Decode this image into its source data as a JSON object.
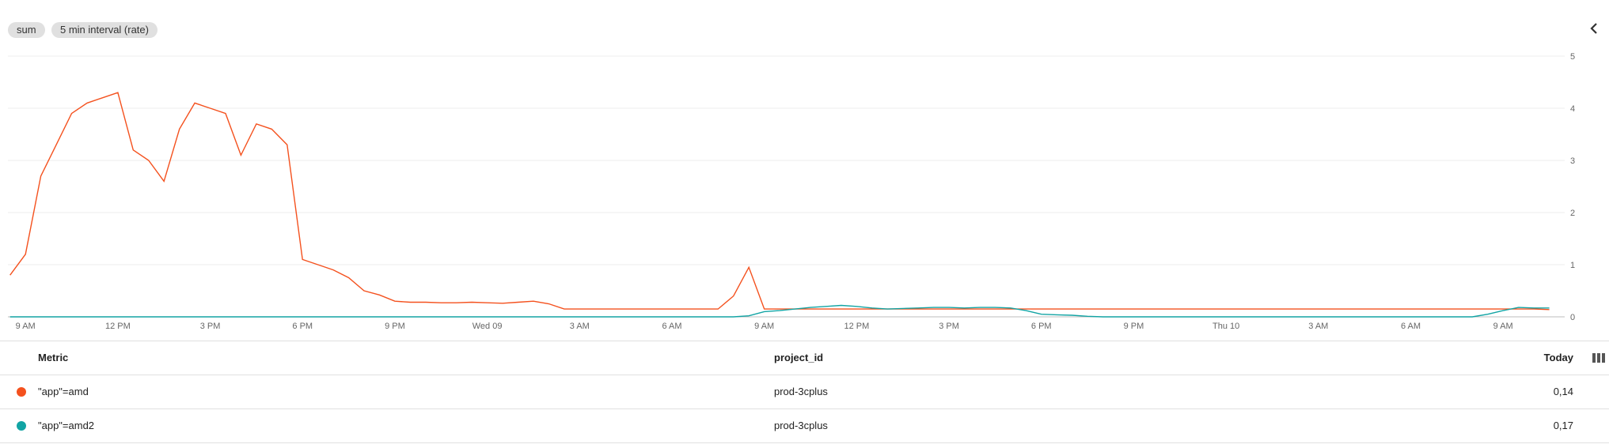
{
  "chips": [
    "sum",
    "5 min interval (rate)"
  ],
  "chart_data": {
    "type": "line",
    "x": [
      -0.5,
      0,
      0.5,
      1,
      1.5,
      2,
      2.5,
      3,
      3.5,
      4,
      4.5,
      5,
      5.5,
      6,
      6.5,
      7,
      7.5,
      8,
      8.5,
      9,
      9.5,
      10,
      10.5,
      11,
      11.5,
      12,
      12.5,
      13,
      13.5,
      14,
      14.5,
      15,
      15.5,
      16,
      16.5,
      17,
      17.5,
      18,
      18.5,
      19,
      19.5,
      20,
      20.5,
      21,
      21.5,
      22,
      22.5,
      23,
      23.5,
      24,
      24.5,
      25,
      25.5,
      26,
      26.5,
      27,
      27.5,
      28,
      28.5,
      29,
      29.5,
      30,
      30.5,
      31,
      31.5,
      32,
      32.5,
      33,
      33.5,
      34,
      34.5,
      35,
      35.5,
      36,
      36.5,
      37,
      37.5,
      38,
      38.5,
      39,
      39.5,
      40,
      40.5,
      41,
      41.5,
      42,
      42.5,
      43,
      43.5,
      44,
      44.5,
      45,
      45.5,
      46,
      46.5,
      47,
      47.5,
      48,
      48.5,
      49,
      49.5
    ],
    "series": [
      {
        "name": "\"app\"=amd",
        "color": "#f4511e",
        "values": [
          0.8,
          1.2,
          2.7,
          3.3,
          3.9,
          4.1,
          4.2,
          4.3,
          3.2,
          3.0,
          2.6,
          3.6,
          4.1,
          4.0,
          3.9,
          3.1,
          3.7,
          3.6,
          3.3,
          1.1,
          1.0,
          0.9,
          0.75,
          0.5,
          0.42,
          0.3,
          0.28,
          0.28,
          0.27,
          0.27,
          0.28,
          0.27,
          0.26,
          0.28,
          0.3,
          0.25,
          0.15,
          0.15,
          0.15,
          0.15,
          0.15,
          0.15,
          0.15,
          0.15,
          0.15,
          0.15,
          0.15,
          0.4,
          0.95,
          0.15,
          0.15,
          0.15,
          0.15,
          0.15,
          0.15,
          0.15,
          0.15,
          0.15,
          0.15,
          0.15,
          0.15,
          0.15,
          0.15,
          0.15,
          0.15,
          0.15,
          0.15,
          0.15,
          0.15,
          0.15,
          0.15,
          0.15,
          0.15,
          0.15,
          0.15,
          0.15,
          0.15,
          0.15,
          0.15,
          0.15,
          0.15,
          0.15,
          0.15,
          0.15,
          0.15,
          0.15,
          0.15,
          0.15,
          0.15,
          0.15,
          0.15,
          0.15,
          0.15,
          0.15,
          0.15,
          0.15,
          0.15,
          0.15,
          0.15,
          0.15,
          0.14
        ]
      },
      {
        "name": "\"app\"=amd2",
        "color": "#12a4a4",
        "values": [
          0,
          0,
          0,
          0,
          0,
          0,
          0,
          0,
          0,
          0,
          0,
          0,
          0,
          0,
          0,
          0,
          0,
          0,
          0,
          0,
          0,
          0,
          0,
          0,
          0,
          0,
          0,
          0,
          0,
          0,
          0,
          0,
          0,
          0,
          0,
          0,
          0,
          0,
          0,
          0,
          0,
          0,
          0,
          0,
          0,
          0,
          0,
          0,
          0.02,
          0.1,
          0.12,
          0.15,
          0.18,
          0.2,
          0.22,
          0.2,
          0.17,
          0.15,
          0.16,
          0.17,
          0.18,
          0.18,
          0.17,
          0.18,
          0.18,
          0.17,
          0.12,
          0.05,
          0.04,
          0.03,
          0.01,
          0,
          0,
          0,
          0,
          0,
          0,
          0,
          0,
          0,
          0,
          0,
          0,
          0,
          0,
          0,
          0,
          0,
          0,
          0,
          0,
          0,
          0,
          0,
          0,
          0,
          0.05,
          0.12,
          0.18,
          0.17,
          0.17
        ]
      }
    ],
    "xlim": [
      -0.57,
      50
    ],
    "xticks": [
      {
        "value": 0,
        "label": "9 AM"
      },
      {
        "value": 3,
        "label": "12 PM"
      },
      {
        "value": 6,
        "label": "3 PM"
      },
      {
        "value": 9,
        "label": "6 PM"
      },
      {
        "value": 12,
        "label": "9 PM"
      },
      {
        "value": 15,
        "label": "Wed 09"
      },
      {
        "value": 18,
        "label": "3 AM"
      },
      {
        "value": 21,
        "label": "6 AM"
      },
      {
        "value": 24,
        "label": "9 AM"
      },
      {
        "value": 27,
        "label": "12 PM"
      },
      {
        "value": 30,
        "label": "3 PM"
      },
      {
        "value": 33,
        "label": "6 PM"
      },
      {
        "value": 36,
        "label": "9 PM"
      },
      {
        "value": 39,
        "label": "Thu 10"
      },
      {
        "value": 42,
        "label": "3 AM"
      },
      {
        "value": 45,
        "label": "6 AM"
      },
      {
        "value": 48,
        "label": "9 AM"
      }
    ],
    "ylim": [
      0,
      5
    ],
    "yticks": [
      0,
      1,
      2,
      3,
      4,
      5
    ],
    "grid": true
  },
  "table": {
    "columns": [
      "Metric",
      "project_id",
      "Today"
    ],
    "rows": [
      [
        "\"app\"=amd",
        "prod-3cplus",
        "0,14"
      ],
      [
        "\"app\"=amd2",
        "prod-3cplus",
        "0,17"
      ]
    ]
  }
}
